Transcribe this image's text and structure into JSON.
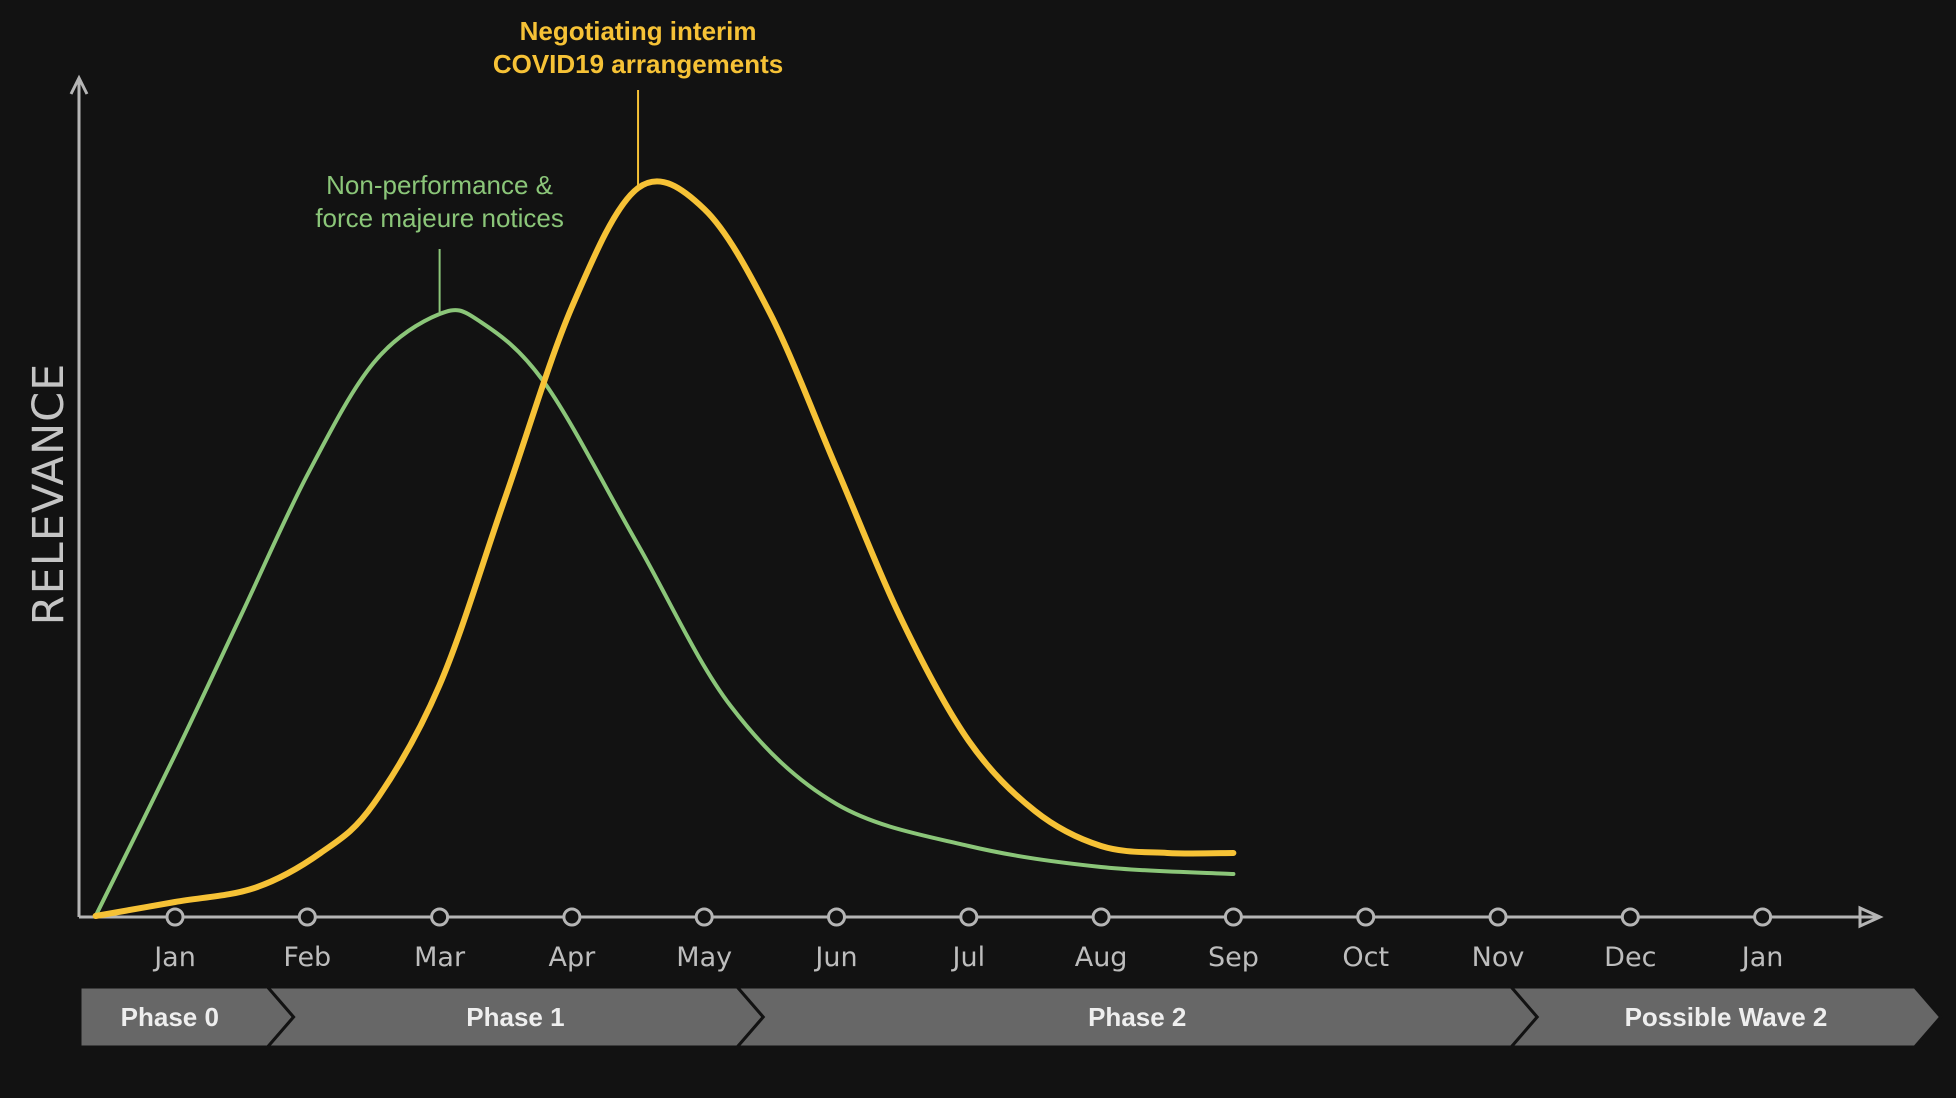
{
  "chart_data": {
    "type": "line",
    "title": "",
    "xlabel": "",
    "ylabel": "RELEVANCE",
    "ylim": [
      0,
      100
    ],
    "x_ticks": [
      "Jan",
      "Feb",
      "Mar",
      "Apr",
      "May",
      "Jun",
      "Jul",
      "Aug",
      "Sep",
      "Oct",
      "Nov",
      "Dec",
      "Jan"
    ],
    "xlim": [
      -0.6,
      13.1
    ],
    "series": [
      {
        "name": "Non-performance & force majeure notices",
        "color": "#8bc679",
        "points": [
          [
            -0.6,
            0
          ],
          [
            0,
            23
          ],
          [
            0.5,
            43
          ],
          [
            1,
            63
          ],
          [
            1.5,
            79
          ],
          [
            2,
            86
          ],
          [
            2.3,
            85
          ],
          [
            2.8,
            76
          ],
          [
            3.5,
            53
          ],
          [
            4.2,
            30
          ],
          [
            5,
            16
          ],
          [
            6,
            10
          ],
          [
            7,
            7
          ],
          [
            8,
            6
          ]
        ]
      },
      {
        "name": "Negotiating interim COVID19 arrangements",
        "color": "#f6c236",
        "points": [
          [
            -0.6,
            0
          ],
          [
            0,
            2
          ],
          [
            0.6,
            4
          ],
          [
            1.1,
            9
          ],
          [
            1.5,
            16
          ],
          [
            2,
            33
          ],
          [
            2.5,
            60
          ],
          [
            3,
            87
          ],
          [
            3.5,
            104
          ],
          [
            4,
            101
          ],
          [
            4.5,
            86
          ],
          [
            5,
            64
          ],
          [
            5.5,
            42
          ],
          [
            6,
            25
          ],
          [
            6.5,
            15
          ],
          [
            7,
            10
          ],
          [
            7.5,
            9
          ],
          [
            8,
            9
          ]
        ]
      }
    ],
    "annotations": [
      {
        "series": 0,
        "x": 2,
        "lines": [
          "Non-performance &",
          "force majeure notices"
        ]
      },
      {
        "series": 1,
        "x": 3.5,
        "lines": [
          "Negotiating interim",
          "COVID19 arrangements"
        ]
      }
    ],
    "phases": [
      {
        "label": "Phase 0",
        "start": -0.6,
        "end": 0.7
      },
      {
        "label": "Phase 1",
        "start": 0.7,
        "end": 4.25
      },
      {
        "label": "Phase 2",
        "start": 4.25,
        "end": 10.1
      },
      {
        "label": "Possible Wave 2",
        "start": 10.1,
        "end": 13.15
      }
    ]
  }
}
